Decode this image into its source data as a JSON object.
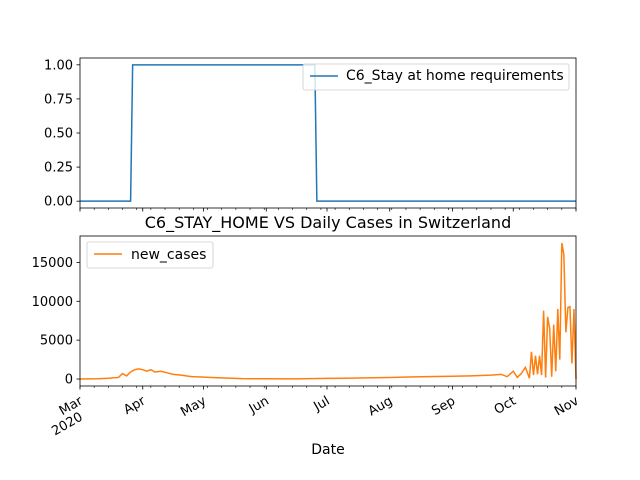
{
  "chart_data": [
    {
      "type": "line",
      "title": "",
      "xlabel": "",
      "ylabel": "",
      "ylim": [
        -0.05,
        1.05
      ],
      "yticks": [
        "0.00",
        "0.25",
        "0.50",
        "0.75",
        "1.00"
      ],
      "ytick_values": [
        0,
        0.25,
        0.5,
        0.75,
        1.0
      ],
      "grid": false,
      "legend_position": "top-right",
      "series": [
        {
          "name": "C6_Stay at home requirements",
          "color": "#1f77b4",
          "x": [
            "2020-03-01",
            "2020-03-26",
            "2020-03-27",
            "2020-06-25",
            "2020-06-26",
            "2020-11-01"
          ],
          "y": [
            0,
            0,
            1,
            1,
            0,
            0
          ]
        }
      ]
    },
    {
      "type": "line",
      "title": "C6_STAY_HOME VS Daily Cases in Switzerland",
      "xlabel": "Date",
      "ylabel": "",
      "ylim": [
        -900,
        18400
      ],
      "yticks": [
        "0",
        "5000",
        "10000",
        "15000"
      ],
      "ytick_values": [
        0,
        5000,
        10000,
        15000
      ],
      "xticks": [
        {
          "label": "Mar",
          "sub": "2020",
          "date": "2020-03-01"
        },
        {
          "label": "Apr",
          "date": "2020-04-01"
        },
        {
          "label": "May",
          "date": "2020-05-01"
        },
        {
          "label": "Jun",
          "date": "2020-06-01"
        },
        {
          "label": "Jul",
          "date": "2020-07-01"
        },
        {
          "label": "Aug",
          "date": "2020-08-01"
        },
        {
          "label": "Sep",
          "date": "2020-09-01"
        },
        {
          "label": "Oct",
          "date": "2020-10-01"
        },
        {
          "label": "Nov",
          "date": "2020-11-01"
        }
      ],
      "grid": false,
      "legend_position": "top-left",
      "series": [
        {
          "name": "new_cases",
          "color": "#ff7f0e",
          "x": [
            "2020-03-01",
            "2020-03-05",
            "2020-03-10",
            "2020-03-15",
            "2020-03-20",
            "2020-03-22",
            "2020-03-24",
            "2020-03-26",
            "2020-03-28",
            "2020-03-30",
            "2020-04-01",
            "2020-04-03",
            "2020-04-05",
            "2020-04-07",
            "2020-04-10",
            "2020-04-13",
            "2020-04-16",
            "2020-04-20",
            "2020-04-25",
            "2020-04-30",
            "2020-05-05",
            "2020-05-10",
            "2020-05-15",
            "2020-05-20",
            "2020-06-01",
            "2020-06-15",
            "2020-07-01",
            "2020-07-10",
            "2020-07-20",
            "2020-08-01",
            "2020-08-10",
            "2020-08-20",
            "2020-09-01",
            "2020-09-10",
            "2020-09-20",
            "2020-09-25",
            "2020-09-28",
            "2020-10-01",
            "2020-10-03",
            "2020-10-05",
            "2020-10-07",
            "2020-10-09",
            "2020-10-10",
            "2020-10-11",
            "2020-10-12",
            "2020-10-13",
            "2020-10-14",
            "2020-10-15",
            "2020-10-16",
            "2020-10-17",
            "2020-10-18",
            "2020-10-19",
            "2020-10-20",
            "2020-10-21",
            "2020-10-22",
            "2020-10-23",
            "2020-10-24",
            "2020-10-25",
            "2020-10-26",
            "2020-10-27",
            "2020-10-28",
            "2020-10-29",
            "2020-10-30",
            "2020-10-31",
            "2020-11-01"
          ],
          "y": [
            0,
            10,
            30,
            100,
            200,
            700,
            400,
            900,
            1200,
            1300,
            1200,
            1000,
            1200,
            900,
            1000,
            800,
            600,
            500,
            300,
            250,
            200,
            150,
            100,
            50,
            30,
            20,
            80,
            100,
            150,
            200,
            250,
            300,
            350,
            400,
            500,
            600,
            300,
            1000,
            200,
            700,
            1500,
            100,
            3500,
            500,
            3000,
            600,
            3000,
            500,
            8800,
            200,
            8000,
            6500,
            300,
            7000,
            1000,
            9000,
            2500,
            17500,
            16000,
            6000,
            9200,
            9300,
            2000,
            9000,
            0
          ]
        }
      ]
    }
  ]
}
